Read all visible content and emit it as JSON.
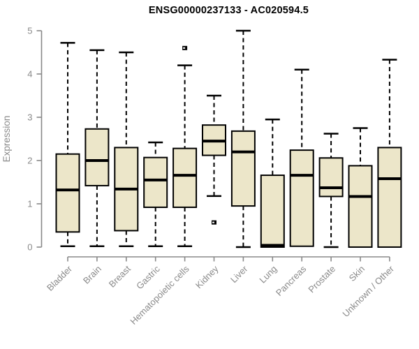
{
  "title": "ENSG00000237133 - AC020594.5",
  "chart_data": {
    "type": "box",
    "title": "ENSG00000237133 - AC020594.5",
    "ylabel": "Expression",
    "ylim": [
      0,
      5
    ],
    "yticks": [
      0,
      1,
      2,
      3,
      4,
      5
    ],
    "grid": false,
    "legend": "none",
    "categories": [
      "Bladder",
      "Brain",
      "Breast",
      "Gastric",
      "Hematopoietic cells",
      "Kidney",
      "Liver",
      "Lung",
      "Pancreas",
      "Prostate",
      "Skin",
      "Unknown / Other"
    ],
    "series": [
      {
        "category": "Bladder",
        "whisker_low": 0.02,
        "q1": 0.35,
        "median": 1.32,
        "q3": 2.15,
        "whisker_high": 4.72,
        "outliers": []
      },
      {
        "category": "Brain",
        "whisker_low": 0.02,
        "q1": 1.42,
        "median": 2.0,
        "q3": 2.73,
        "whisker_high": 4.55,
        "outliers": []
      },
      {
        "category": "Breast",
        "whisker_low": 0.02,
        "q1": 0.38,
        "median": 1.34,
        "q3": 2.3,
        "whisker_high": 4.5,
        "outliers": []
      },
      {
        "category": "Gastric",
        "whisker_low": 0.02,
        "q1": 0.92,
        "median": 1.55,
        "q3": 2.07,
        "whisker_high": 2.42,
        "outliers": []
      },
      {
        "category": "Hematopoietic cells",
        "whisker_low": 0.02,
        "q1": 0.92,
        "median": 1.66,
        "q3": 2.28,
        "whisker_high": 4.2,
        "outliers": [
          4.6
        ]
      },
      {
        "category": "Kidney",
        "whisker_low": 1.18,
        "q1": 2.12,
        "median": 2.45,
        "q3": 2.82,
        "whisker_high": 3.5,
        "outliers": [
          0.57
        ]
      },
      {
        "category": "Liver",
        "whisker_low": 0.0,
        "q1": 0.95,
        "median": 2.2,
        "q3": 2.68,
        "whisker_high": 5.0,
        "outliers": []
      },
      {
        "category": "Lung",
        "whisker_low": 0.0,
        "q1": 0.0,
        "median": 0.04,
        "q3": 1.66,
        "whisker_high": 2.95,
        "outliers": []
      },
      {
        "category": "Pancreas",
        "whisker_low": 0.02,
        "q1": 0.02,
        "median": 1.66,
        "q3": 2.24,
        "whisker_high": 4.1,
        "outliers": []
      },
      {
        "category": "Prostate",
        "whisker_low": 0.0,
        "q1": 1.17,
        "median": 1.37,
        "q3": 2.06,
        "whisker_high": 2.62,
        "outliers": []
      },
      {
        "category": "Skin",
        "whisker_low": 0.0,
        "q1": 0.0,
        "median": 1.17,
        "q3": 1.88,
        "whisker_high": 2.75,
        "outliers": []
      },
      {
        "category": "Unknown / Other",
        "whisker_low": 0.0,
        "q1": 0.0,
        "median": 1.58,
        "q3": 2.3,
        "whisker_high": 4.33,
        "outliers": []
      }
    ],
    "colors": {
      "box_fill": "#ECE6C9",
      "box_border": "#000000",
      "median": "#000000",
      "whisker": "#000000",
      "axis": "#888888",
      "tick_label": "#8A8A8A",
      "title": "#000000",
      "background": "#FFFFFF"
    }
  }
}
